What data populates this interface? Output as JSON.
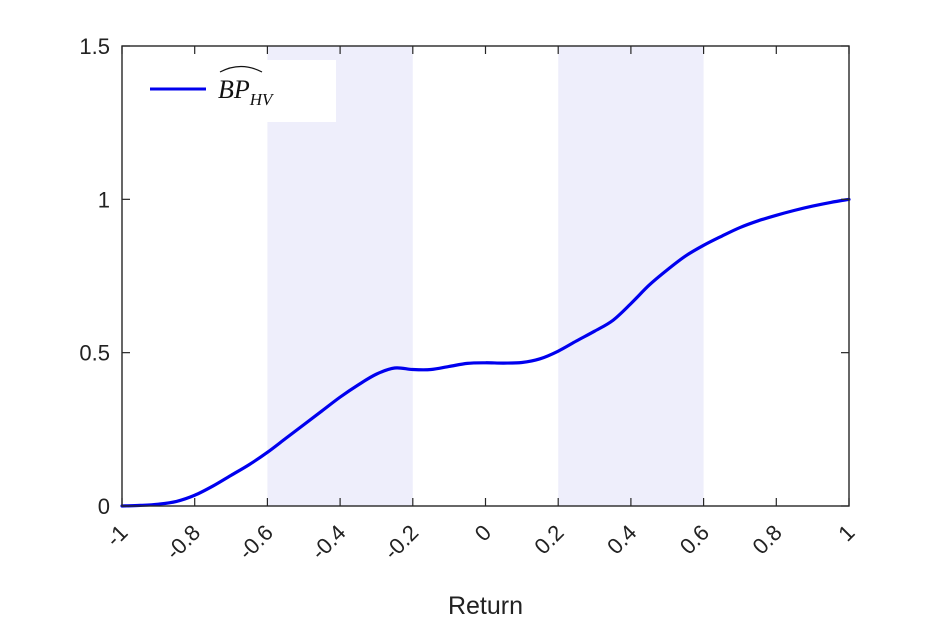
{
  "chart_data": {
    "type": "line",
    "xlabel": "Return",
    "ylabel": "",
    "xlim": [
      -1,
      1
    ],
    "ylim": [
      0,
      1.5
    ],
    "x_ticks": [
      -1,
      -0.8,
      -0.6,
      -0.4,
      -0.2,
      0,
      0.2,
      0.4,
      0.6,
      0.8,
      1
    ],
    "x_tick_labels": [
      "-1",
      "-0.8",
      "-0.6",
      "-0.4",
      "-0.2",
      "0",
      "0.2",
      "0.4",
      "0.6",
      "0.8",
      "1"
    ],
    "y_ticks": [
      0,
      0.5,
      1,
      1.5
    ],
    "y_tick_labels": [
      "0",
      "0.5",
      "1",
      "1.5"
    ],
    "grid": false,
    "legend_position": "top-left",
    "shaded_regions": [
      {
        "x_start": -0.6,
        "x_end": -0.2,
        "color": "#eeeefb"
      },
      {
        "x_start": 0.2,
        "x_end": 0.6,
        "color": "#eeeefb"
      }
    ],
    "series": [
      {
        "name": "BP_HV",
        "legend_main": "BP",
        "legend_sub": "HV",
        "color": "#0000ee",
        "x": [
          -1,
          -0.95,
          -0.9,
          -0.85,
          -0.8,
          -0.75,
          -0.7,
          -0.65,
          -0.6,
          -0.55,
          -0.5,
          -0.45,
          -0.4,
          -0.35,
          -0.3,
          -0.25,
          -0.2,
          -0.15,
          -0.1,
          -0.05,
          0,
          0.05,
          0.1,
          0.15,
          0.2,
          0.25,
          0.3,
          0.35,
          0.4,
          0.45,
          0.5,
          0.55,
          0.6,
          0.65,
          0.7,
          0.75,
          0.8,
          0.85,
          0.9,
          0.95,
          1
        ],
        "y": [
          0,
          0.002,
          0.006,
          0.015,
          0.035,
          0.065,
          0.1,
          0.135,
          0.175,
          0.22,
          0.265,
          0.31,
          0.355,
          0.395,
          0.43,
          0.45,
          0.445,
          0.445,
          0.455,
          0.465,
          0.467,
          0.466,
          0.468,
          0.48,
          0.505,
          0.538,
          0.57,
          0.605,
          0.66,
          0.72,
          0.77,
          0.815,
          0.85,
          0.88,
          0.908,
          0.93,
          0.948,
          0.964,
          0.978,
          0.99,
          1.0
        ]
      }
    ]
  }
}
